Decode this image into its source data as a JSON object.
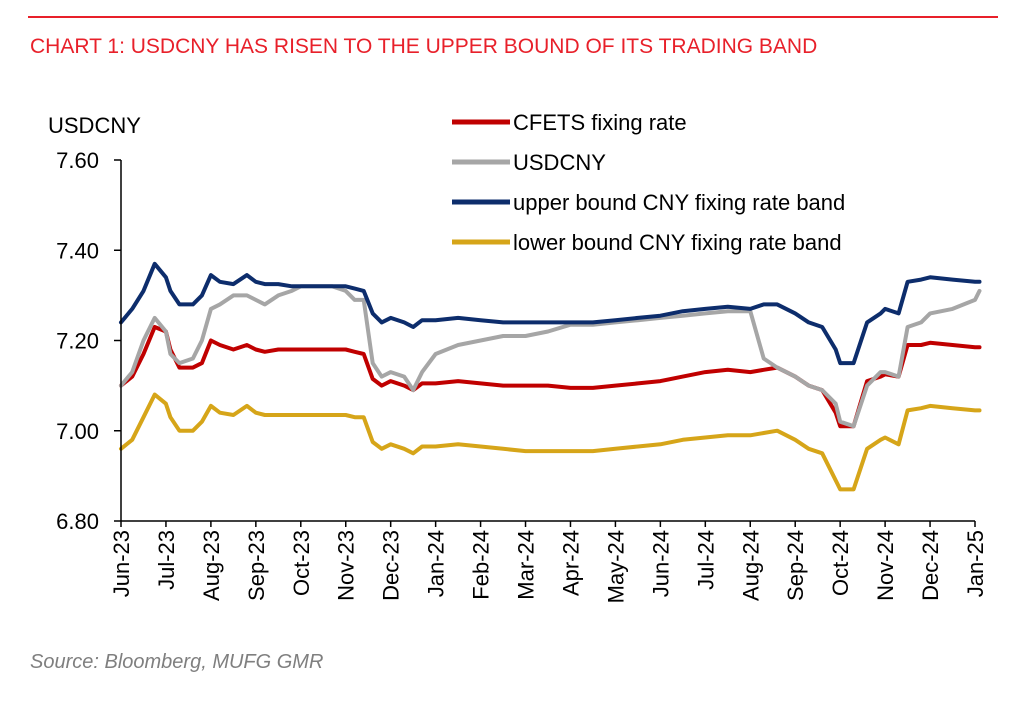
{
  "title": "CHART 1: USDCNY HAS RISEN TO THE UPPER BOUND OF ITS TRADING BAND",
  "source": "Source: Bloomberg, MUFG GMR",
  "colors": {
    "accent": "#e8202a",
    "fixing": "#c00000",
    "usdcny": "#a6a6a6",
    "upper": "#0d2d6c",
    "lower": "#d6a519"
  },
  "chart_data": {
    "type": "line",
    "ylabel": "USDCNY",
    "ylim": [
      6.8,
      7.6
    ],
    "yticks": [
      "7.60",
      "7.40",
      "7.20",
      "7.00",
      "6.80"
    ],
    "ytick_values": [
      7.6,
      7.4,
      7.2,
      7.0,
      6.8
    ],
    "categories": [
      "Jun-23",
      "Jul-23",
      "Aug-23",
      "Sep-23",
      "Oct-23",
      "Nov-23",
      "Dec-23",
      "Jan-24",
      "Feb-24",
      "Mar-24",
      "Apr-24",
      "May-24",
      "Jun-24",
      "Jul-24",
      "Aug-24",
      "Sep-24",
      "Oct-24",
      "Nov-24",
      "Dec-24",
      "Jan-25"
    ],
    "x": [
      0,
      0.25,
      0.5,
      0.75,
      1,
      1.1,
      1.3,
      1.6,
      1.8,
      2,
      2.2,
      2.5,
      2.8,
      3,
      3.2,
      3.5,
      3.8,
      4,
      4.4,
      4.7,
      5,
      5.2,
      5.4,
      5.6,
      5.8,
      6,
      6.3,
      6.5,
      6.7,
      7,
      7.5,
      8,
      8.5,
      9,
      9.5,
      10,
      10.5,
      11,
      11.5,
      12,
      12.5,
      13,
      13.5,
      14,
      14.3,
      14.6,
      15,
      15.3,
      15.6,
      15.9,
      16,
      16.3,
      16.6,
      16.9,
      17,
      17.3,
      17.5,
      17.8,
      18,
      18.5,
      19,
      19.1
    ],
    "series": [
      {
        "name": "CFETS fixing rate",
        "color": "#c00000",
        "values": [
          7.1,
          7.12,
          7.17,
          7.23,
          7.22,
          7.18,
          7.14,
          7.14,
          7.15,
          7.2,
          7.19,
          7.18,
          7.19,
          7.18,
          7.175,
          7.18,
          7.18,
          7.18,
          7.18,
          7.18,
          7.18,
          7.175,
          7.17,
          7.115,
          7.1,
          7.11,
          7.1,
          7.09,
          7.105,
          7.105,
          7.11,
          7.105,
          7.1,
          7.1,
          7.1,
          7.095,
          7.095,
          7.1,
          7.105,
          7.11,
          7.12,
          7.13,
          7.135,
          7.13,
          7.135,
          7.14,
          7.12,
          7.1,
          7.09,
          7.04,
          7.01,
          7.01,
          7.11,
          7.12,
          7.125,
          7.12,
          7.19,
          7.19,
          7.195,
          7.19,
          7.185,
          7.185
        ]
      },
      {
        "name": "USDCNY",
        "color": "#a6a6a6",
        "values": [
          7.1,
          7.13,
          7.2,
          7.25,
          7.22,
          7.17,
          7.15,
          7.16,
          7.2,
          7.27,
          7.28,
          7.3,
          7.3,
          7.29,
          7.28,
          7.3,
          7.31,
          7.32,
          7.32,
          7.32,
          7.31,
          7.29,
          7.29,
          7.15,
          7.12,
          7.13,
          7.12,
          7.09,
          7.13,
          7.17,
          7.19,
          7.2,
          7.21,
          7.21,
          7.22,
          7.235,
          7.235,
          7.24,
          7.245,
          7.25,
          7.255,
          7.26,
          7.265,
          7.265,
          7.16,
          7.14,
          7.12,
          7.1,
          7.09,
          7.06,
          7.02,
          7.01,
          7.1,
          7.13,
          7.13,
          7.12,
          7.23,
          7.24,
          7.26,
          7.27,
          7.29,
          7.31
        ]
      },
      {
        "name": "upper bound CNY fixing rate band",
        "color": "#0d2d6c",
        "values": [
          7.24,
          7.27,
          7.31,
          7.37,
          7.34,
          7.31,
          7.28,
          7.28,
          7.3,
          7.345,
          7.33,
          7.325,
          7.345,
          7.33,
          7.325,
          7.325,
          7.32,
          7.32,
          7.32,
          7.32,
          7.32,
          7.315,
          7.31,
          7.26,
          7.24,
          7.25,
          7.24,
          7.23,
          7.245,
          7.245,
          7.25,
          7.245,
          7.24,
          7.24,
          7.24,
          7.24,
          7.24,
          7.245,
          7.25,
          7.255,
          7.265,
          7.27,
          7.275,
          7.27,
          7.28,
          7.28,
          7.26,
          7.24,
          7.23,
          7.18,
          7.15,
          7.15,
          7.24,
          7.26,
          7.27,
          7.26,
          7.33,
          7.335,
          7.34,
          7.335,
          7.33,
          7.33
        ]
      },
      {
        "name": "lower bound CNY fixing rate band",
        "color": "#d6a519",
        "values": [
          6.96,
          6.98,
          7.03,
          7.08,
          7.06,
          7.03,
          7.0,
          7.0,
          7.02,
          7.055,
          7.04,
          7.035,
          7.055,
          7.04,
          7.035,
          7.035,
          7.035,
          7.035,
          7.035,
          7.035,
          7.035,
          7.03,
          7.03,
          6.975,
          6.96,
          6.97,
          6.96,
          6.95,
          6.965,
          6.965,
          6.97,
          6.965,
          6.96,
          6.955,
          6.955,
          6.955,
          6.955,
          6.96,
          6.965,
          6.97,
          6.98,
          6.985,
          6.99,
          6.99,
          6.995,
          7.0,
          6.98,
          6.96,
          6.95,
          6.89,
          6.87,
          6.87,
          6.96,
          6.98,
          6.985,
          6.97,
          7.045,
          7.05,
          7.055,
          7.05,
          7.045,
          7.045
        ]
      }
    ],
    "legend": "top-right"
  }
}
